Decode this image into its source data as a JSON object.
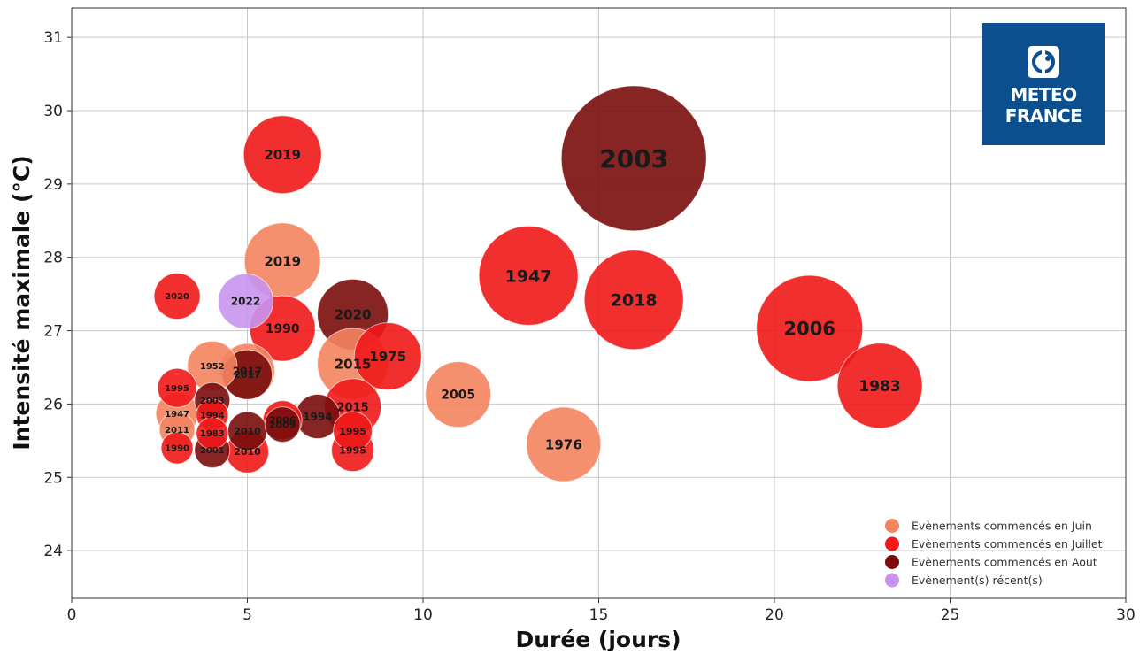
{
  "chart_data": {
    "type": "scatter",
    "xlabel": "Durée (jours)",
    "ylabel": "Intensité maximale (°C)",
    "xlim": [
      0,
      30
    ],
    "ylim": [
      23.35,
      31.4
    ],
    "xticks": [
      0,
      5,
      10,
      15,
      20,
      25,
      30
    ],
    "yticks": [
      24,
      25,
      26,
      27,
      28,
      29,
      30,
      31
    ],
    "grid": true,
    "legend_position": "bottom-right",
    "colors": {
      "juin": "#f4845f",
      "juillet": "#f01818",
      "aout": "#7a0c0c",
      "recent": "#c993ee"
    },
    "legend": [
      {
        "key": "juin",
        "label": "Evènements commencés en Juin"
      },
      {
        "key": "juillet",
        "label": "Evènements commencés en Juillet"
      },
      {
        "key": "aout",
        "label": "Evènements commencés en Aout"
      },
      {
        "key": "recent",
        "label": "Evènement(s) récent(s)"
      }
    ],
    "logo": {
      "line1": "METEO",
      "line2": "FRANCE",
      "color": "#0b4f8f"
    },
    "points": [
      {
        "label": "2003",
        "x": 16,
        "y": 29.35,
        "r": 82,
        "group": "aout",
        "fs": 28
      },
      {
        "label": "2006",
        "x": 21,
        "y": 27.03,
        "r": 60,
        "group": "juillet",
        "fs": 21
      },
      {
        "label": "1983",
        "x": 23,
        "y": 26.25,
        "r": 48,
        "group": "juillet",
        "fs": 17
      },
      {
        "label": "1947",
        "x": 13,
        "y": 27.75,
        "r": 56,
        "group": "juillet",
        "fs": 19
      },
      {
        "label": "2018",
        "x": 16,
        "y": 27.42,
        "r": 56,
        "group": "juillet",
        "fs": 19
      },
      {
        "label": "2005",
        "x": 11,
        "y": 26.13,
        "r": 37,
        "group": "juin",
        "fs": 14
      },
      {
        "label": "1976",
        "x": 14,
        "y": 25.45,
        "r": 42,
        "group": "juin",
        "fs": 15
      },
      {
        "label": "1975",
        "x": 9,
        "y": 26.65,
        "r": 38,
        "group": "juillet",
        "fs": 15
      },
      {
        "label": "2020",
        "x": 8,
        "y": 27.22,
        "r": 40,
        "group": "aout",
        "fs": 15
      },
      {
        "label": "2015",
        "x": 8,
        "y": 25.96,
        "r": 32,
        "group": "juillet",
        "fs": 13
      },
      {
        "label": "1994",
        "x": 7,
        "y": 25.83,
        "r": 25,
        "group": "aout",
        "fs": 12
      },
      {
        "label": "2015",
        "x": 8,
        "y": 26.55,
        "r": 40,
        "group": "juin",
        "fs": 15
      },
      {
        "label": "1995",
        "x": 8,
        "y": 25.63,
        "r": 22,
        "group": "juillet",
        "fs": 11
      },
      {
        "label": "1995",
        "x": 8,
        "y": 25.37,
        "r": 24,
        "group": "juillet",
        "fs": 11
      },
      {
        "label": "2019",
        "x": 6,
        "y": 29.4,
        "r": 44,
        "group": "juillet",
        "fs": 15
      },
      {
        "label": "2019",
        "x": 6,
        "y": 27.95,
        "r": 43,
        "group": "juin",
        "fs": 15
      },
      {
        "label": "1990",
        "x": 6,
        "y": 27.03,
        "r": 37,
        "group": "juillet",
        "fs": 14
      },
      {
        "label": "2009",
        "x": 6,
        "y": 25.72,
        "r": 20,
        "group": "aout",
        "fs": 11
      },
      {
        "label": "2006",
        "x": 6,
        "y": 25.78,
        "r": 22,
        "group": "juillet",
        "fs": 11
      },
      {
        "label": "2017",
        "x": 5,
        "y": 26.4,
        "r": 28,
        "group": "aout",
        "fs": 11
      },
      {
        "label": "2022",
        "x": 4.95,
        "y": 27.4,
        "r": 31,
        "group": "recent",
        "fs": 12
      },
      {
        "label": "2017",
        "x": 5,
        "y": 26.45,
        "r": 31,
        "group": "juin",
        "fs": 12
      },
      {
        "label": "2010",
        "x": 5,
        "y": 25.63,
        "r": 22,
        "group": "aout",
        "fs": 11
      },
      {
        "label": "2010",
        "x": 5,
        "y": 25.35,
        "r": 24,
        "group": "juillet",
        "fs": 11
      },
      {
        "label": "2020",
        "x": 3,
        "y": 27.47,
        "r": 26,
        "group": "juillet",
        "fs": 10
      },
      {
        "label": "1952",
        "x": 4,
        "y": 26.52,
        "r": 28,
        "group": "juin",
        "fs": 10
      },
      {
        "label": "2003",
        "x": 4,
        "y": 26.05,
        "r": 20,
        "group": "aout",
        "fs": 10
      },
      {
        "label": "1994",
        "x": 4,
        "y": 25.85,
        "r": 18,
        "group": "juillet",
        "fs": 10
      },
      {
        "label": "1983",
        "x": 4,
        "y": 25.6,
        "r": 18,
        "group": "juillet",
        "fs": 10
      },
      {
        "label": "2001",
        "x": 4,
        "y": 25.37,
        "r": 20,
        "group": "aout",
        "fs": 10
      },
      {
        "label": "1995",
        "x": 3,
        "y": 26.22,
        "r": 22,
        "group": "juillet",
        "fs": 10
      },
      {
        "label": "1990",
        "x": 3,
        "y": 25.4,
        "r": 18,
        "group": "juillet",
        "fs": 10
      },
      {
        "label": "1947",
        "x": 3,
        "y": 25.87,
        "r": 24,
        "group": "juin",
        "fs": 10
      },
      {
        "label": "2011",
        "x": 3,
        "y": 25.65,
        "r": 20,
        "group": "juin",
        "fs": 10
      }
    ]
  }
}
